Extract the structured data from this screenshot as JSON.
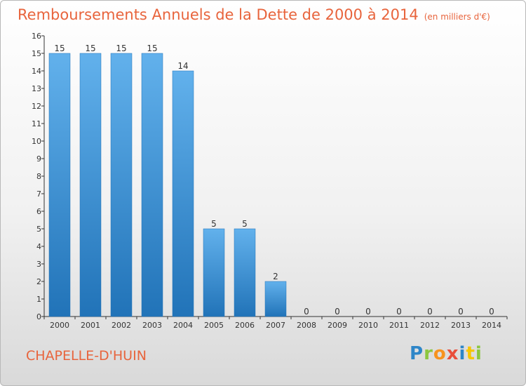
{
  "header": {
    "title": "Remboursements Annuels de la Dette de 2000 à 2014",
    "unit": "(en milliers d'€)"
  },
  "footer": {
    "place": "CHAPELLE-D'HUIN",
    "logo_letters": [
      "P",
      "r",
      "o",
      "x",
      "i",
      "t",
      "i"
    ],
    "logo_colors": [
      "#2e86c8",
      "#8cc63f",
      "#f7931e",
      "#e94e3b",
      "#2e86c8",
      "#f7c600",
      "#8cc63f"
    ]
  },
  "colors": {
    "bar": "#3d94dd",
    "bar_light": "#62b1ec",
    "bar_dark": "#2173b8",
    "title": "#e8643c",
    "axis": "#333333"
  },
  "chart_data": {
    "type": "bar",
    "title": "Remboursements Annuels de la Dette de 2000 à 2014",
    "subtitle": "(en milliers d'€)",
    "categories": [
      "2000",
      "2001",
      "2002",
      "2003",
      "2004",
      "2005",
      "2006",
      "2007",
      "2008",
      "2009",
      "2010",
      "2011",
      "2012",
      "2013",
      "2014"
    ],
    "values": [
      15,
      15,
      15,
      15,
      14,
      5,
      5,
      2,
      0,
      0,
      0,
      0,
      0,
      0,
      0
    ],
    "data_labels": [
      "15",
      "15",
      "15",
      "15",
      "14",
      "5",
      "5",
      "2",
      "0",
      "0",
      "0",
      "0",
      "0",
      "0",
      "0"
    ],
    "ylim": [
      0,
      16
    ],
    "yticks": [
      "0",
      "1",
      "2",
      "3",
      "4",
      "5",
      "6",
      "7",
      "8",
      "9",
      "10",
      "11",
      "12",
      "13",
      "14",
      "15",
      "16"
    ],
    "xlabel": "",
    "ylabel": "",
    "grid": false,
    "legend": "none"
  }
}
